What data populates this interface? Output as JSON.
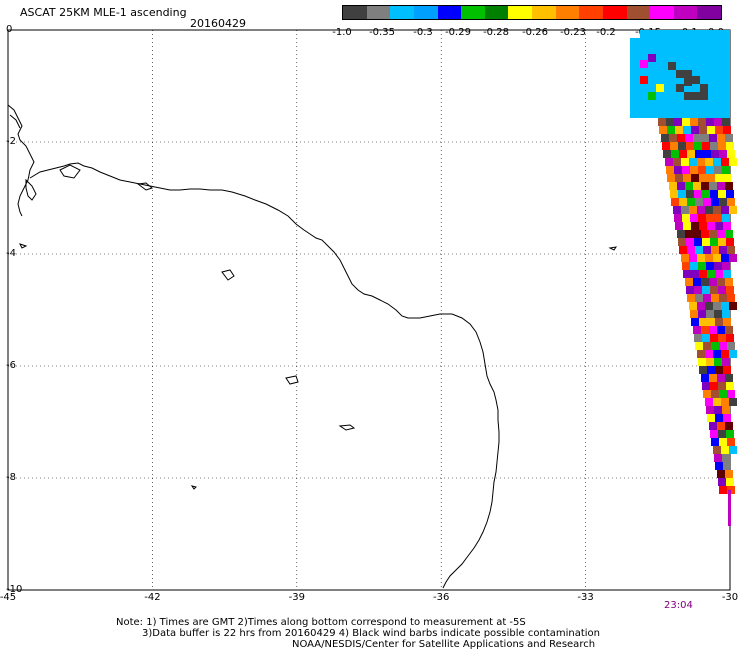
{
  "header": {
    "title": "ASCAT 25KM MLE-1 ascending",
    "date": "20160429"
  },
  "colorbar": {
    "colors": [
      "#404040",
      "#7f7f7f",
      "#00bfff",
      "#00a0ff",
      "#0000ff",
      "#00c000",
      "#008000",
      "#ffff00",
      "#ffc000",
      "#ff8000",
      "#ff4000",
      "#ff0000",
      "#a05030",
      "#ff00ff",
      "#c000c0",
      "#8000a0"
    ],
    "labels": [
      "-1.0",
      "-0.35",
      "-0.3",
      "-0.29",
      "-0.28",
      "-0.26",
      "-0.23",
      "-0.2",
      "-0.15",
      "-0.1",
      "0.0"
    ]
  },
  "axes": {
    "y_ticks": [
      "0",
      "-2",
      "-4",
      "-6",
      "-8",
      "-10"
    ],
    "x_ticks": [
      "-45",
      "-42",
      "-39",
      "-36",
      "-33",
      "-30"
    ]
  },
  "timestamp": "23:04",
  "notes": {
    "line1": "Note: 1) Times are GMT 2)Times along bottom correspond to measurement at -5S",
    "line2": "3)Data buffer is 22 hrs from 20160429 4) Black wind barbs indicate possible contamination",
    "line3": "NOAA/NESDIS/Center for Satellite Applications and Research"
  },
  "swath": {
    "palette": [
      "#ff00ff",
      "#8000c0",
      "#ff0000",
      "#ffff00",
      "#00c000",
      "#0000ff",
      "#ff8000",
      "#a05030",
      "#404040",
      "#00bfff",
      "#ff4000",
      "#ffc000",
      "#600000",
      "#c000c0",
      "#7f7f7f"
    ]
  }
}
